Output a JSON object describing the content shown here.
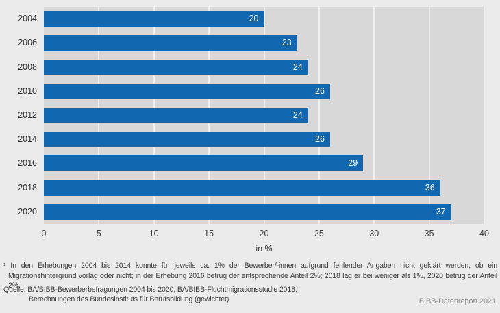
{
  "chart_data": {
    "type": "bar",
    "orientation": "horizontal",
    "categories": [
      "2004",
      "2006",
      "2008",
      "2010",
      "2012",
      "2014",
      "2016",
      "2018",
      "2020"
    ],
    "values": [
      20,
      23,
      24,
      26,
      24,
      26,
      29,
      36,
      37
    ],
    "xlabel": "in %",
    "xlim": [
      0,
      40
    ],
    "xticks": [
      0,
      5,
      10,
      15,
      20,
      25,
      30,
      35,
      40
    ],
    "grid": "vertical",
    "bar_color": "#1167b0",
    "plot_background": "#d8d8d8",
    "page_background": "#ebebeb",
    "value_labels": "inside-end-white"
  },
  "footnote": {
    "text": "¹ In den Erhebungen 2004 bis 2014 konnte für jeweils ca. 1% der Bewerber/-innen aufgrund fehlender Angaben nicht geklärt werden, ob ein Migrationshintergrund vorlag oder nicht; in der Erhebung 2016 betrug der entsprechende Anteil 2%; 2018 lag er bei weniger als 1%, 2020 betrug der Anteil 2%."
  },
  "source": {
    "line1": "Quelle: BA/BIBB-Bewerberbefragungen 2004 bis 2020; BA/BIBB-Fluchtmigrationsstudie 2018;",
    "line2": "Berechnungen des Bundesinstituts für Berufsbildung (gewichtet)"
  },
  "branding": "BIBB-Datenreport 2021"
}
